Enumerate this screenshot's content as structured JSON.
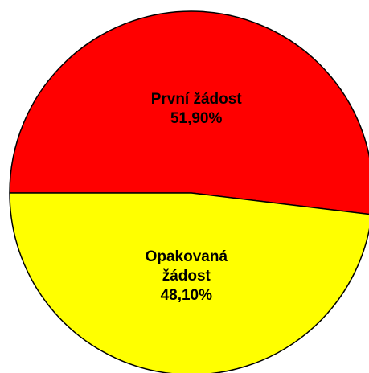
{
  "chart_data": {
    "type": "pie",
    "categories": [
      "První žádost",
      "Opakovaná žádost"
    ],
    "values": [
      51.9,
      48.1
    ],
    "value_labels": [
      "51,90%",
      "48,10%"
    ],
    "colors": [
      "#ff0000",
      "#ffff00"
    ]
  }
}
